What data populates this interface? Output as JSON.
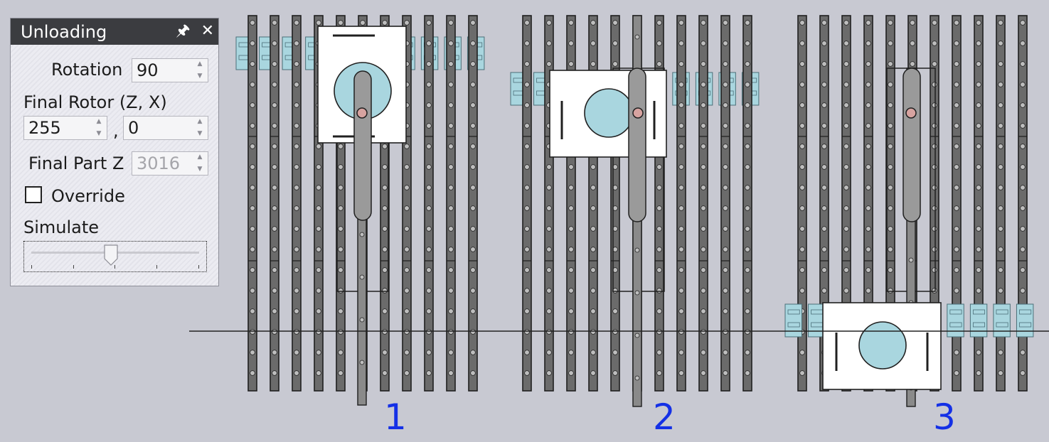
{
  "panel": {
    "title": "Unloading",
    "pin_icon": "pin-icon",
    "close_icon": "close-icon",
    "rotation_label": "Rotation",
    "rotation_value": "90",
    "final_rotor_label": "Final Rotor (Z, X)",
    "final_rotor_z": "255",
    "separator": ",",
    "final_rotor_x": "0",
    "final_part_z_label": "Final Part Z",
    "final_part_z_value": "3016",
    "override_label": "Override",
    "override_checked": false,
    "simulate_label": "Simulate",
    "simulate_fraction": 0.47
  },
  "scene": {
    "stage_labels": [
      "1",
      "2",
      "3"
    ],
    "label_color": "#1430e6",
    "gripper_color": "#a9d6df"
  }
}
